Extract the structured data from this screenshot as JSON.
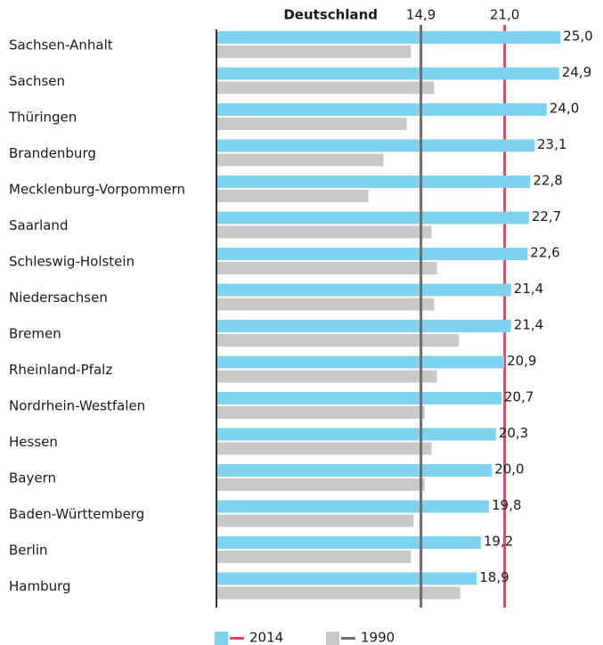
{
  "chart_data": {
    "type": "bar",
    "orientation": "horizontal",
    "categories": [
      "Sachsen-Anhalt",
      "Sachsen",
      "Thüringen",
      "Brandenburg",
      "Mecklenburg-Vorpommern",
      "Saarland",
      "Schleswig-Holstein",
      "Niedersachsen",
      "Bremen",
      "Rheinland-Pfalz",
      "Nordrhein-Westfalen",
      "Hessen",
      "Bayern",
      "Baden-Württemberg",
      "Berlin",
      "Hamburg"
    ],
    "series": [
      {
        "name": "2014",
        "color": "#7fd3f0",
        "line_color": "#e0475a",
        "values": [
          25.0,
          24.9,
          24.0,
          23.1,
          22.8,
          22.7,
          22.6,
          21.4,
          21.4,
          20.9,
          20.7,
          20.3,
          20.0,
          19.8,
          19.2,
          18.9
        ],
        "value_labels": [
          "25,0",
          "24,9",
          "24,0",
          "23,1",
          "22,8",
          "22,7",
          "22,6",
          "21,4",
          "21,4",
          "20,9",
          "20,7",
          "20,3",
          "20,0",
          "19,8",
          "19,2",
          "18,9"
        ]
      },
      {
        "name": "1990",
        "color": "#c8c8c8",
        "line_color": "#6e6e6e",
        "values": [
          14.1,
          15.8,
          13.8,
          12.1,
          11.0,
          15.6,
          16.0,
          15.8,
          17.6,
          16.0,
          15.1,
          15.6,
          15.1,
          14.3,
          14.1,
          17.7
        ]
      }
    ],
    "reference_title": "Deutschland",
    "reference_lines": [
      {
        "value": 14.9,
        "label": "14,9",
        "series": 1
      },
      {
        "value": 21.0,
        "label": "21,0",
        "series": 0
      }
    ],
    "xlim": [
      0,
      28
    ]
  }
}
